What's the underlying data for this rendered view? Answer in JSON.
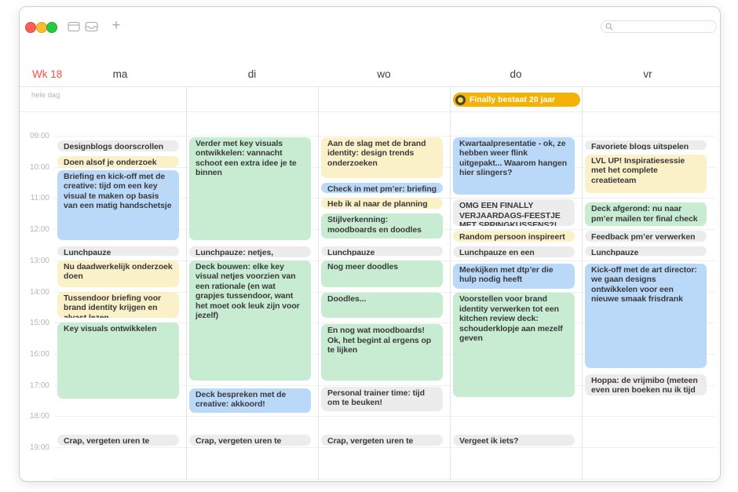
{
  "titlebar": {
    "search_placeholder": "",
    "icons": [
      "calendar-view-icon",
      "inbox-icon",
      "add-icon",
      "search-icon"
    ]
  },
  "header": {
    "week_label": "Wk 18",
    "all_day_label": "hele dag",
    "day_names": [
      "ma",
      "di",
      "wo",
      "do",
      "vr"
    ]
  },
  "time_labels": [
    "09:00",
    "10:00",
    "11:00",
    "12:00",
    "13:00",
    "14:00",
    "15:00",
    "16:00",
    "17:00",
    "18:00",
    "19:00"
  ],
  "palette": {
    "gray": {
      "bg": "#ececec",
      "text": "#3a3a3c"
    },
    "yellow": {
      "bg": "#fbf1c9",
      "text": "#3a3a3c"
    },
    "blue": {
      "bg": "#bad9f9",
      "text": "#3a3a3c"
    },
    "green": {
      "bg": "#c8ecd2",
      "text": "#3a3a3c"
    },
    "gold": {
      "bg": "#f3b208",
      "text": "#ffffff"
    }
  },
  "all_day_event": {
    "title": "Finally bestaat 20 jaar",
    "day_index": 3,
    "color": "gold",
    "icon": "finally-logo-icon"
  },
  "days": [
    {
      "name": "ma",
      "events": [
        {
          "title": "Designblogs doorscrollen",
          "start": 9.15,
          "end": 9.55,
          "color": "gray"
        },
        {
          "title": "Doen alsof je onderzoek deed",
          "start": 9.65,
          "end": 10.05,
          "color": "yellow"
        },
        {
          "title": "Briefing en kick-off met de creative: tijd om een key visual te maken op basis van een matig handschetsje",
          "start": 10.1,
          "end": 12.4,
          "color": "blue"
        },
        {
          "title": "Lunchpauze",
          "start": 12.55,
          "end": 12.9,
          "color": "gray"
        },
        {
          "title": "Nu daadwerkelijk onderzoek doen",
          "start": 13.0,
          "end": 13.9,
          "color": "yellow"
        },
        {
          "title": "Tussendoor briefing voor brand identity krijgen en alvast lezen",
          "start": 14.0,
          "end": 14.9,
          "color": "yellow"
        },
        {
          "title": "Key visuals ontwikkelen",
          "start": 15.0,
          "end": 17.5,
          "color": "green"
        },
        {
          "title": "Crap, vergeten uren te boeken!",
          "start": 18.6,
          "end": 19.0,
          "color": "gray"
        }
      ]
    },
    {
      "name": "di",
      "events": [
        {
          "title": "Verder met key visuals ontwikkelen: vannacht schoot een extra idee je te binnen",
          "start": 9.05,
          "end": 12.4,
          "color": "green"
        },
        {
          "title": "Lunchpauze: netjes, omeletjes",
          "start": 12.55,
          "end": 12.95,
          "color": "gray"
        },
        {
          "title": "Deck bouwen: elke key visual netjes voorzien van een rationale (en wat grapjes tussendoor, want het moet ook leuk zijn voor jezelf)",
          "start": 13.0,
          "end": 16.9,
          "color": "green"
        },
        {
          "title": "Deck bespreken met de creative: akkoord!",
          "start": 17.1,
          "end": 17.95,
          "color": "blue"
        },
        {
          "title": "Crap, vergeten uren te boeken!",
          "start": 18.6,
          "end": 19.0,
          "color": "gray"
        }
      ]
    },
    {
      "name": "wo",
      "events": [
        {
          "title": "Aan de slag met de brand identity: design trends onderzoeken",
          "start": 9.05,
          "end": 10.4,
          "color": "yellow"
        },
        {
          "title": "Check in met pm’er: briefing ok?",
          "start": 10.5,
          "end": 10.9,
          "color": "blue"
        },
        {
          "title": "Heb ik al naar de planning gekeken?",
          "start": 11.0,
          "end": 11.4,
          "color": "yellow"
        },
        {
          "title": "Stijlverkenning: moodboards en doodles",
          "start": 11.5,
          "end": 12.35,
          "color": "green"
        },
        {
          "title": "Lunchpauze",
          "start": 12.55,
          "end": 12.9,
          "color": "gray"
        },
        {
          "title": "Nog meer doodles",
          "start": 13.0,
          "end": 13.9,
          "color": "green"
        },
        {
          "title": "Doodles...",
          "start": 14.05,
          "end": 14.9,
          "color": "green"
        },
        {
          "title": "En nog wat moodboards! Ok, het begint al ergens op te lijken",
          "start": 15.05,
          "end": 16.9,
          "color": "green"
        },
        {
          "title": "Personal trainer time: tijd om te beuken!",
          "start": 17.05,
          "end": 17.9,
          "color": "gray"
        },
        {
          "title": "Crap, vergeten uren te boeken!",
          "start": 18.6,
          "end": 19.0,
          "color": "gray"
        }
      ]
    },
    {
      "name": "do",
      "events": [
        {
          "title": "Kwartaalpresentatie - ok, ze hebben weer flink uitgepakt... Waarom hangen hier slingers?",
          "start": 9.05,
          "end": 10.95,
          "color": "blue"
        },
        {
          "title": "OMG EEN FINALLY VERJAARDAGS-FEESTJE MET SPRINGKUSSENS?!",
          "start": 11.05,
          "end": 11.95,
          "color": "gray"
        },
        {
          "title": "Random persoon inspireert me",
          "start": 12.05,
          "end": 12.45,
          "color": "yellow"
        },
        {
          "title": "Lunchpauze en een wandeling",
          "start": 12.55,
          "end": 12.95,
          "color": "gray"
        },
        {
          "title": "Meekijken met dtp’er die hulp nodig heeft",
          "start": 13.1,
          "end": 13.95,
          "color": "blue"
        },
        {
          "title": "Voorstellen voor brand identity verwerken tot een kitchen review deck: schouderklopje aan mezelf geven",
          "start": 14.05,
          "end": 17.45,
          "color": "green"
        },
        {
          "title": "Vergeet ik iets?",
          "start": 18.6,
          "end": 19.0,
          "color": "gray"
        }
      ]
    },
    {
      "name": "vr",
      "events": [
        {
          "title": "Favoriete blogs uitspelen",
          "start": 9.15,
          "end": 9.5,
          "color": "gray"
        },
        {
          "title": "LVL UP! Inspiratiesessie met het complete creatieteam",
          "start": 9.6,
          "end": 10.9,
          "color": "yellow"
        },
        {
          "title": "Deck afgerond: nu naar pm’er mailen ter final check",
          "start": 11.15,
          "end": 11.95,
          "color": "green"
        },
        {
          "title": "Feedback pm’er verwerken",
          "start": 12.05,
          "end": 12.45,
          "color": "gray"
        },
        {
          "title": "Lunchpauze",
          "start": 12.55,
          "end": 12.9,
          "color": "gray"
        },
        {
          "title": "Kick-off met de art director: we gaan designs ontwikkelen voor een nieuwe smaak frisdrank",
          "start": 13.1,
          "end": 16.5,
          "color": "blue"
        },
        {
          "title": "Hoppa: de vrijmibo (meteen even uren boeken nu ik tijd heb)",
          "start": 16.65,
          "end": 17.4,
          "color": "gray"
        }
      ]
    }
  ]
}
